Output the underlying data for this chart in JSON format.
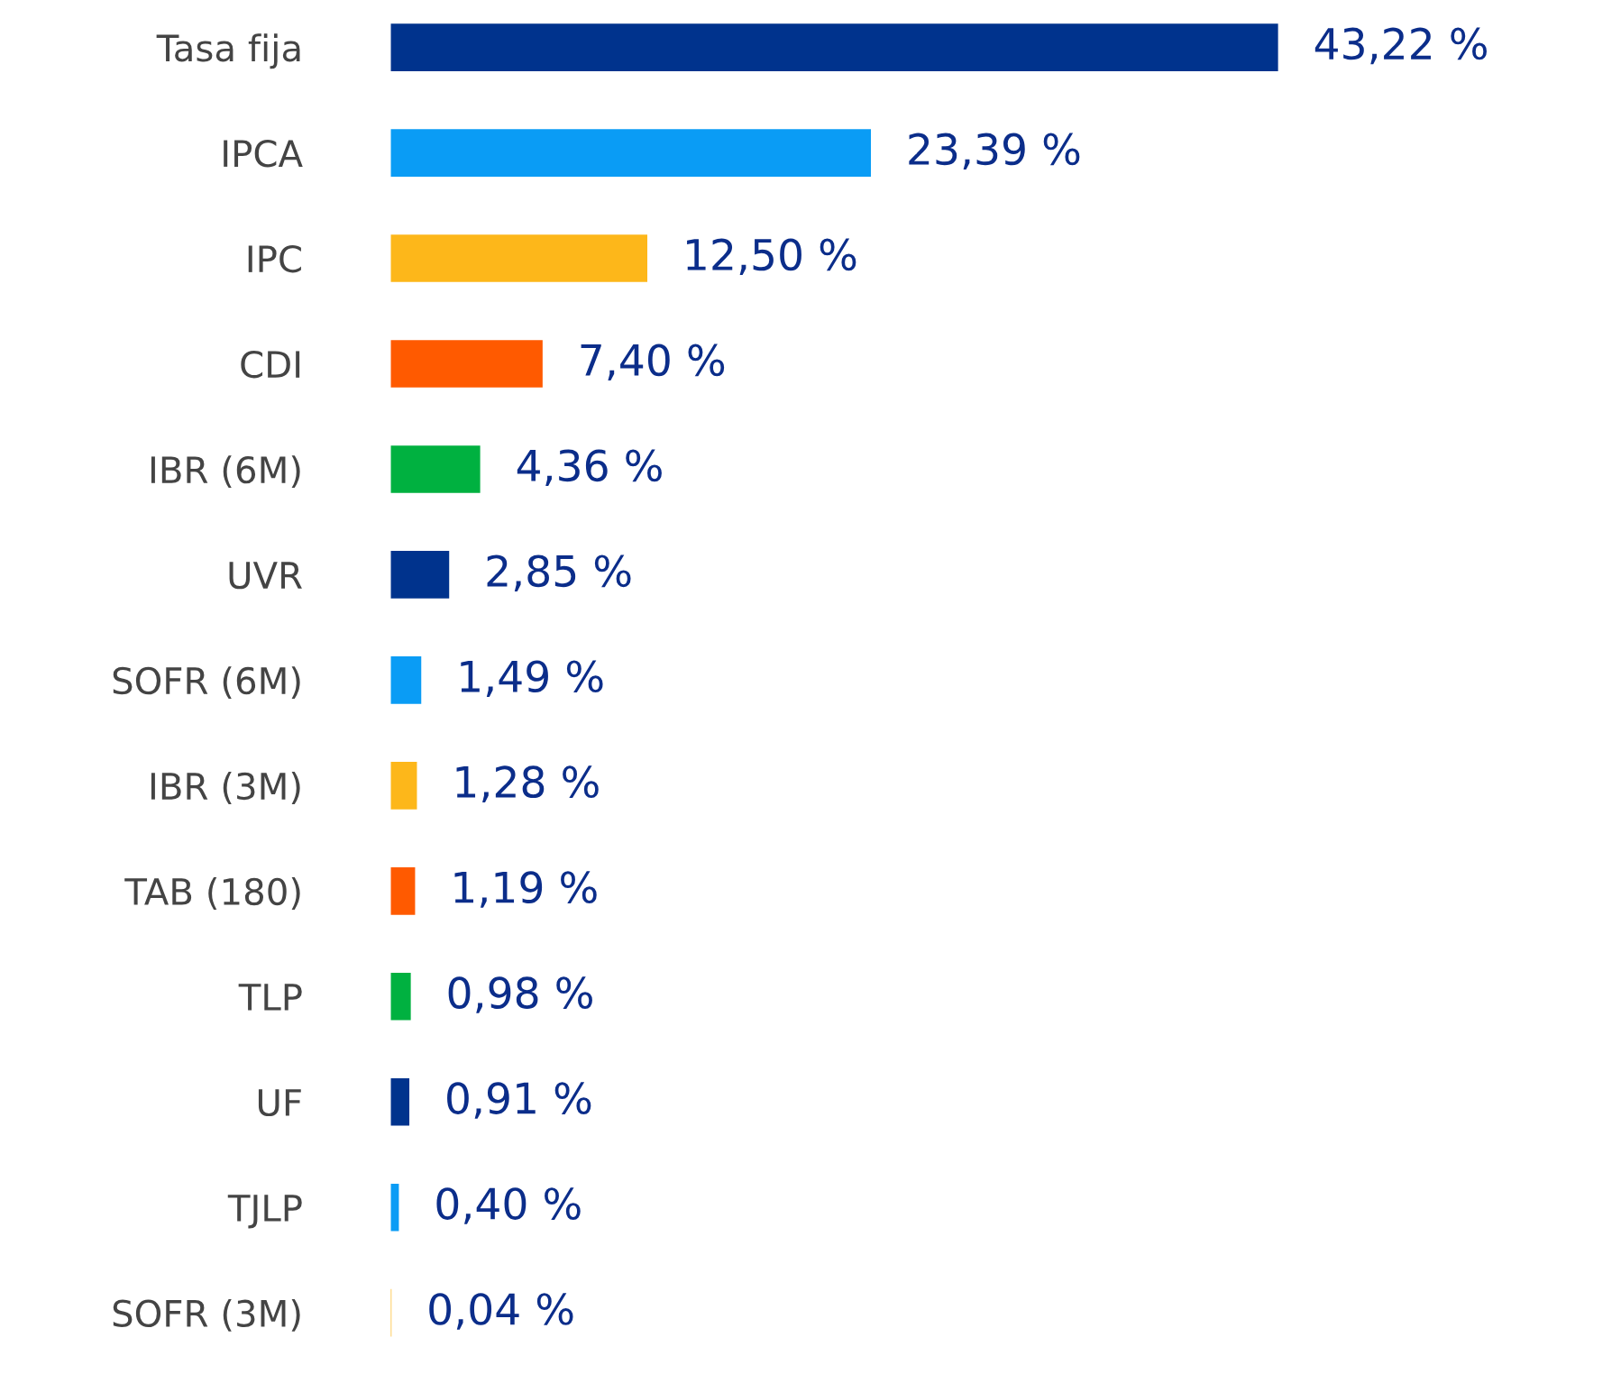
{
  "chart_data": {
    "type": "bar",
    "orientation": "horizontal",
    "categories": [
      "Tasa fija",
      "IPCA",
      "IPC",
      "CDI",
      "IBR (6M)",
      "UVR",
      "SOFR (6M)",
      "IBR (3M)",
      "TAB (180)",
      "TLP",
      "UF",
      "TJLP",
      "SOFR (3M)"
    ],
    "values": [
      43.22,
      23.39,
      12.5,
      7.4,
      4.36,
      2.85,
      1.49,
      1.28,
      1.19,
      0.98,
      0.91,
      0.4,
      0.04
    ],
    "value_labels": [
      "43,22 %",
      "23,39 %",
      "12,50 %",
      "7,40 %",
      "4,36 %",
      "2,85 %",
      "1,49 %",
      "1,28 %",
      "1,19 %",
      "0,98 %",
      "0,91 %",
      "0,40 %",
      "0,04 %"
    ],
    "colors": [
      "#00338d",
      "#0a9cf5",
      "#fdb71a",
      "#ff5a00",
      "#00b140",
      "#00338d",
      "#0a9cf5",
      "#fdb71a",
      "#ff5a00",
      "#00b140",
      "#00338d",
      "#0a9cf5",
      "#fdb71a"
    ],
    "tick_labels": "y",
    "grid": false,
    "legend": false
  }
}
